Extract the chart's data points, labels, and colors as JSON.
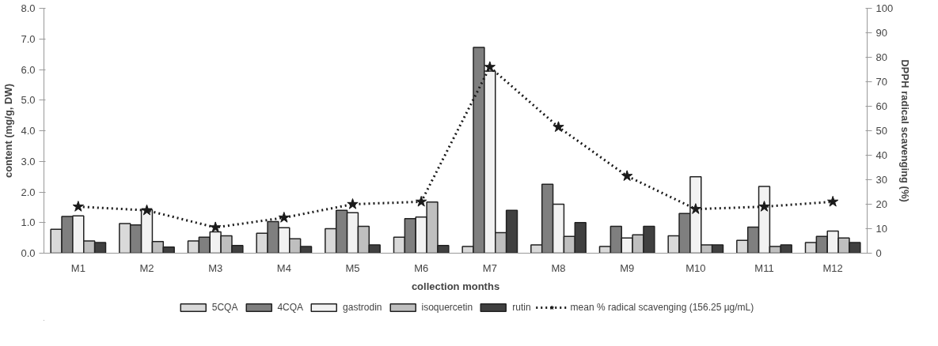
{
  "chart_data": {
    "type": "bar",
    "xlabel": "collection months",
    "ylabel": "content (mg/g, DW)",
    "y2label": "DPPH radical scavenging (%)",
    "categories": [
      "M1",
      "M2",
      "M3",
      "M4",
      "M5",
      "M6",
      "M7",
      "M8",
      "M9",
      "M10",
      "M11",
      "M12"
    ],
    "series": [
      {
        "name": "5CQA",
        "color": "#d9d9d9",
        "values": [
          0.78,
          0.97,
          0.4,
          0.65,
          0.8,
          0.52,
          0.22,
          0.27,
          0.22,
          0.57,
          0.42,
          0.35
        ]
      },
      {
        "name": "4CQA",
        "color": "#7f7f7f",
        "values": [
          1.2,
          0.92,
          0.52,
          1.03,
          1.4,
          1.13,
          6.72,
          2.25,
          0.88,
          1.3,
          0.85,
          0.55
        ]
      },
      {
        "name": "gastrodin",
        "color": "#f2f2f2",
        "values": [
          1.22,
          1.42,
          0.7,
          0.83,
          1.32,
          1.18,
          5.95,
          1.6,
          0.5,
          2.5,
          2.18,
          0.72
        ]
      },
      {
        "name": "isoquercetin",
        "color": "#bfbfbf",
        "values": [
          0.4,
          0.38,
          0.57,
          0.47,
          0.88,
          1.67,
          0.67,
          0.55,
          0.6,
          0.27,
          0.22,
          0.5
        ]
      },
      {
        "name": "rutin",
        "color": "#404040",
        "values": [
          0.35,
          0.2,
          0.25,
          0.22,
          0.27,
          0.25,
          1.4,
          1.0,
          0.88,
          0.27,
          0.27,
          0.35
        ]
      },
      {
        "name": "mean % radical scavenging (156.25 µg/mL)",
        "type": "line",
        "axis": "y2",
        "color": "#1a1a1a",
        "marker": "star",
        "line_style": "dotted",
        "values": [
          19,
          17.5,
          10.5,
          14.5,
          20,
          21,
          76,
          51.5,
          31.5,
          18,
          19,
          21
        ]
      }
    ],
    "ylim": [
      0,
      8
    ],
    "yticks": [
      {
        "value": 0,
        "label": "0.0"
      },
      {
        "value": 1,
        "label": "1.0"
      },
      {
        "value": 2,
        "label": "2.0"
      },
      {
        "value": 3,
        "label": "3.0"
      },
      {
        "value": 4,
        "label": "4.0"
      },
      {
        "value": 5,
        "label": "5.0"
      },
      {
        "value": 6,
        "label": "6.0"
      },
      {
        "value": 7,
        "label": "7.0"
      },
      {
        "value": 8,
        "label": "8.0"
      }
    ],
    "y2lim": [
      0,
      100
    ],
    "y2ticks": [
      0,
      10,
      20,
      30,
      40,
      50,
      60,
      70,
      80,
      90,
      100
    ],
    "grid": false,
    "legend": "bottom"
  }
}
